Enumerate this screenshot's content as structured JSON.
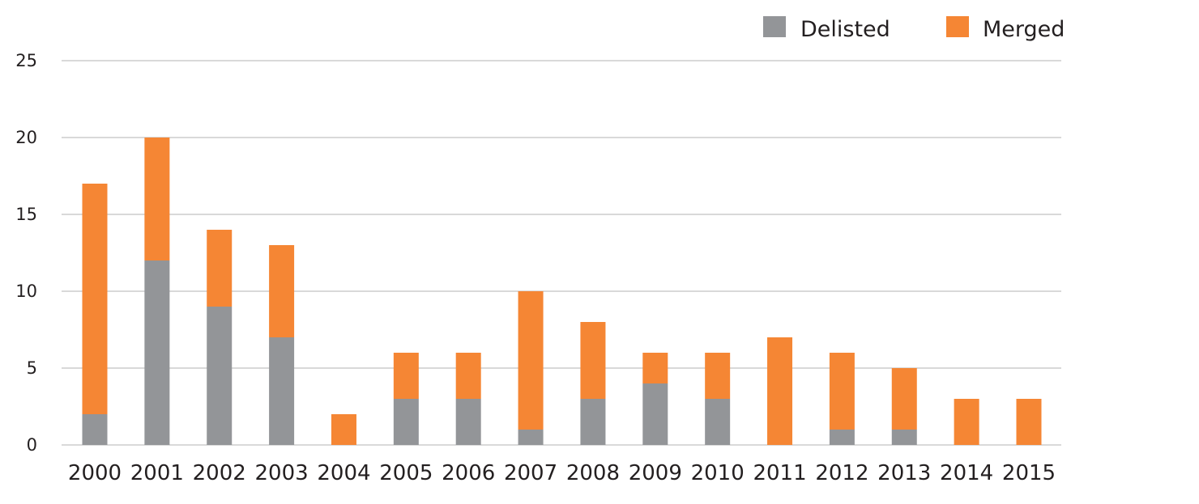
{
  "chart_data": {
    "type": "bar",
    "stacked": true,
    "title": "",
    "xlabel": "",
    "ylabel": "",
    "categories": [
      "2000",
      "2001",
      "2002",
      "2003",
      "2004",
      "2005",
      "2006",
      "2007",
      "2008",
      "2009",
      "2010",
      "2011",
      "2012",
      "2013",
      "2014",
      "2015"
    ],
    "series": [
      {
        "name": "Delisted",
        "color": "#939598",
        "values": [
          2,
          12,
          9,
          7,
          0,
          3,
          3,
          1,
          3,
          4,
          3,
          0,
          1,
          1,
          0,
          0
        ]
      },
      {
        "name": "Merged",
        "color": "#f58634",
        "values": [
          15,
          8,
          5,
          6,
          2,
          3,
          3,
          9,
          5,
          2,
          3,
          7,
          5,
          4,
          3,
          3
        ]
      }
    ],
    "ylim": [
      0,
      25
    ],
    "yticks": [
      "0",
      "5",
      "10",
      "15",
      "20",
      "25"
    ],
    "grid": true,
    "legend_position": "top-right"
  }
}
